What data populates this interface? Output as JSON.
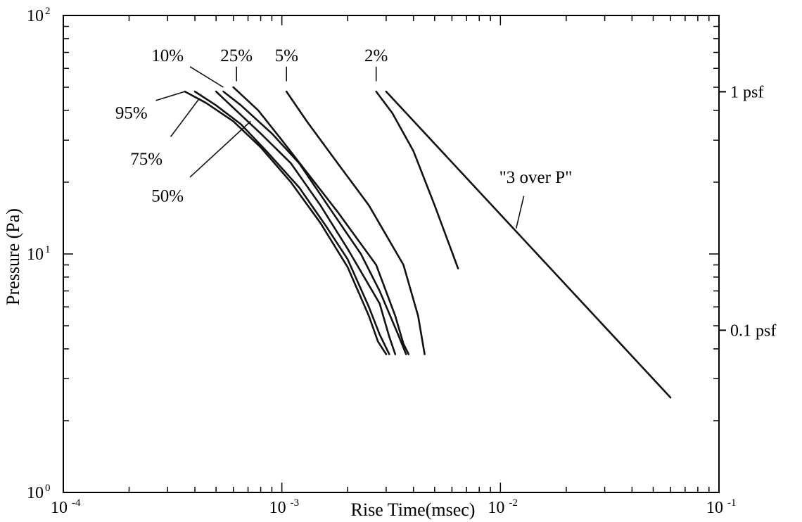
{
  "chart_data": {
    "type": "line",
    "xscale": "log",
    "yscale": "log",
    "xlabel": "Rise Time(msec)",
    "ylabel": "Pressure (Pa)",
    "xlim": [
      0.0001,
      0.1
    ],
    "ylim": [
      1,
      100
    ],
    "x_ticks": [
      {
        "value": 0.0001,
        "base": "10",
        "exp": "-4"
      },
      {
        "value": 0.001,
        "base": "10",
        "exp": "-3"
      },
      {
        "value": 0.01,
        "base": "10",
        "exp": "-2"
      },
      {
        "value": 0.1,
        "base": "10",
        "exp": "-1"
      }
    ],
    "y_ticks": [
      {
        "value": 1,
        "base": "10",
        "exp": "0"
      },
      {
        "value": 10,
        "base": "10",
        "exp": "1"
      },
      {
        "value": 100,
        "base": "10",
        "exp": "2"
      }
    ],
    "right_axis_labels": [
      {
        "value": 47.88,
        "label": "1 psf"
      },
      {
        "value": 4.788,
        "label": "0.1 psf"
      }
    ],
    "grid": false,
    "legend": "none",
    "line_color": "#111111",
    "series": [
      {
        "name": "95%",
        "x": [
          0.00036,
          0.00045,
          0.0006,
          0.0008,
          0.0011,
          0.0015,
          0.002,
          0.0025,
          0.00275,
          0.003
        ],
        "y": [
          48,
          43,
          36,
          28,
          20,
          13.5,
          8.8,
          5.5,
          4.3,
          3.8
        ]
      },
      {
        "name": "75%",
        "x": [
          0.0004,
          0.0005,
          0.00065,
          0.00085,
          0.0012,
          0.0016,
          0.002,
          0.0025,
          0.0028,
          0.0031
        ],
        "y": [
          48,
          42,
          35,
          27,
          19,
          13,
          9.5,
          6,
          4.6,
          3.8
        ]
      },
      {
        "name": "50%",
        "x": [
          0.0005,
          0.0006,
          0.0008,
          0.0011,
          0.0015,
          0.002,
          0.0028,
          0.0031,
          0.0033
        ],
        "y": [
          48,
          41,
          32,
          24,
          16,
          10.5,
          6.2,
          4.5,
          3.8
        ]
      },
      {
        "name": "10%",
        "x": [
          0.00054,
          0.00065,
          0.0009,
          0.0012,
          0.0017,
          0.0023,
          0.0028,
          0.0034,
          0.0037
        ],
        "y": [
          48,
          42,
          32,
          24,
          15,
          10,
          7,
          4.6,
          3.8
        ]
      },
      {
        "name": "25%",
        "x": [
          0.0006,
          0.00078,
          0.001,
          0.0013,
          0.0018,
          0.0027,
          0.0033,
          0.0036,
          0.0038
        ],
        "y": [
          50,
          40,
          30,
          22,
          15,
          9,
          5.5,
          4.2,
          3.8
        ]
      },
      {
        "name": "5%",
        "x": [
          0.00105,
          0.0013,
          0.0018,
          0.0025,
          0.0036,
          0.0042,
          0.0045
        ],
        "y": [
          48,
          36,
          24,
          16,
          9,
          5.5,
          3.8
        ]
      },
      {
        "name": "2%",
        "x": [
          0.0027,
          0.0032,
          0.004,
          0.005,
          0.0064
        ],
        "y": [
          48,
          39,
          27,
          16,
          8.7
        ]
      },
      {
        "name": "\"3 over P\"",
        "x": [
          0.003,
          0.06
        ],
        "y": [
          48,
          2.5
        ]
      }
    ],
    "labels": [
      {
        "text": "95%",
        "series": "95%",
        "lx": 0.000205,
        "ly": 39,
        "leader": [
          [
            0.000265,
            44
          ],
          [
            0.00036,
            48
          ]
        ]
      },
      {
        "text": "75%",
        "series": "75%",
        "lx": 0.00024,
        "ly": 25,
        "leader": [
          [
            0.00031,
            31
          ],
          [
            0.00042,
            45
          ]
        ]
      },
      {
        "text": "50%",
        "series": "50%",
        "lx": 0.0003,
        "ly": 17.5,
        "leader": [
          [
            0.00038,
            21
          ],
          [
            0.00072,
            36
          ]
        ]
      },
      {
        "text": "10%",
        "series": "10%",
        "lx": 0.0003,
        "ly": 68,
        "leader": [
          [
            0.00038,
            61
          ],
          [
            0.00054,
            50
          ]
        ]
      },
      {
        "text": "25%",
        "series": "25%",
        "lx": 0.00062,
        "ly": 68,
        "leader": [
          [
            0.00062,
            61
          ],
          [
            0.00062,
            53
          ]
        ]
      },
      {
        "text": "5%",
        "series": "5%",
        "lx": 0.00105,
        "ly": 68,
        "leader": [
          [
            0.00105,
            61
          ],
          [
            0.00105,
            53
          ]
        ]
      },
      {
        "text": "2%",
        "series": "2%",
        "lx": 0.0027,
        "ly": 68,
        "leader": [
          [
            0.0027,
            61
          ],
          [
            0.0027,
            53
          ]
        ]
      },
      {
        "text": "\"3 over P\"",
        "series": "\"3 over P\"",
        "lx": 0.0145,
        "ly": 21,
        "leader": [
          [
            0.0128,
            17.5
          ],
          [
            0.0118,
            12.8
          ]
        ]
      }
    ]
  }
}
